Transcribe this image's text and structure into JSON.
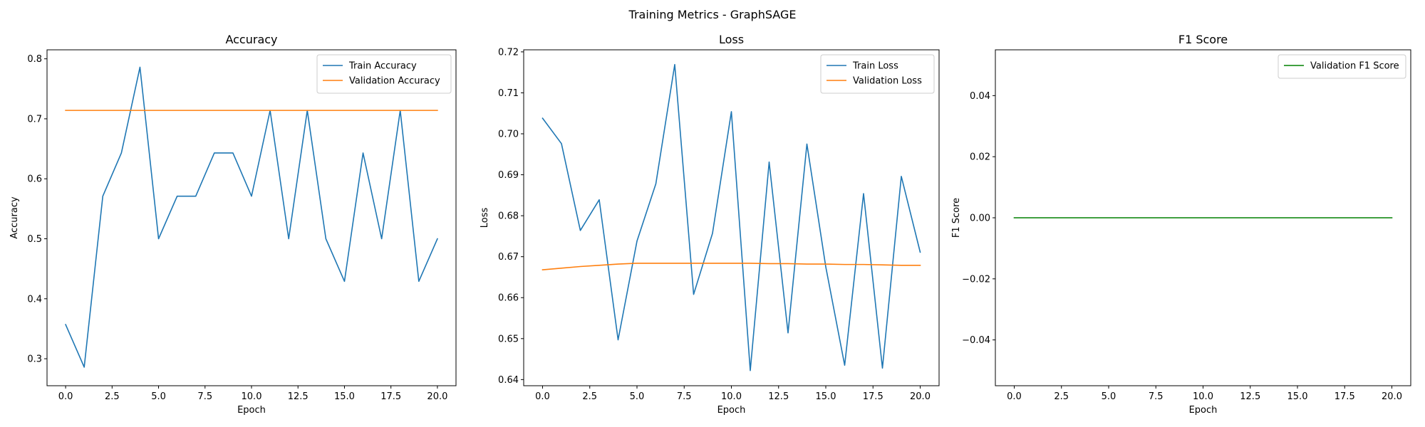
{
  "figure_title": "Training Metrics - GraphSAGE",
  "chart_data": [
    {
      "type": "line",
      "title": "Accuracy",
      "xlabel": "Epoch",
      "ylabel": "Accuracy",
      "xlim": [
        -1.0,
        21.0
      ],
      "ylim": [
        0.255,
        0.815
      ],
      "xticks": [
        0.0,
        2.5,
        5.0,
        7.5,
        10.0,
        12.5,
        15.0,
        17.5,
        20.0
      ],
      "xtick_labels": [
        "0.0",
        "2.5",
        "5.0",
        "7.5",
        "10.0",
        "12.5",
        "15.0",
        "17.5",
        "20.0"
      ],
      "yticks": [
        0.3,
        0.4,
        0.5,
        0.6,
        0.7,
        0.8
      ],
      "ytick_labels": [
        "0.3",
        "0.4",
        "0.5",
        "0.6",
        "0.7",
        "0.8"
      ],
      "legend_position": "upper right",
      "grid": false,
      "series": [
        {
          "name": "Train Accuracy",
          "color": "#1f77b4",
          "x": [
            0,
            1,
            2,
            3,
            4,
            5,
            6,
            7,
            8,
            9,
            10,
            11,
            12,
            13,
            14,
            15,
            16,
            17,
            18,
            19,
            20
          ],
          "y": [
            0.357,
            0.286,
            0.571,
            0.643,
            0.786,
            0.5,
            0.571,
            0.571,
            0.643,
            0.643,
            0.571,
            0.714,
            0.5,
            0.714,
            0.5,
            0.429,
            0.643,
            0.5,
            0.714,
            0.429,
            0.5
          ]
        },
        {
          "name": "Validation Accuracy",
          "color": "#ff7f0e",
          "x": [
            0,
            1,
            2,
            3,
            4,
            5,
            6,
            7,
            8,
            9,
            10,
            11,
            12,
            13,
            14,
            15,
            16,
            17,
            18,
            19,
            20
          ],
          "y": [
            0.714,
            0.714,
            0.714,
            0.714,
            0.714,
            0.714,
            0.714,
            0.714,
            0.714,
            0.714,
            0.714,
            0.714,
            0.714,
            0.714,
            0.714,
            0.714,
            0.714,
            0.714,
            0.714,
            0.714,
            0.714
          ]
        }
      ]
    },
    {
      "type": "line",
      "title": "Loss",
      "xlabel": "Epoch",
      "ylabel": "Loss",
      "xlim": [
        -1.0,
        21.0
      ],
      "ylim": [
        0.6385,
        0.7205
      ],
      "xticks": [
        0.0,
        2.5,
        5.0,
        7.5,
        10.0,
        12.5,
        15.0,
        17.5,
        20.0
      ],
      "xtick_labels": [
        "0.0",
        "2.5",
        "5.0",
        "7.5",
        "10.0",
        "12.5",
        "15.0",
        "17.5",
        "20.0"
      ],
      "yticks": [
        0.64,
        0.65,
        0.66,
        0.67,
        0.68,
        0.69,
        0.7,
        0.71,
        0.72
      ],
      "ytick_labels": [
        "0.64",
        "0.65",
        "0.66",
        "0.67",
        "0.68",
        "0.69",
        "0.70",
        "0.71",
        "0.72"
      ],
      "legend_position": "upper right",
      "grid": false,
      "series": [
        {
          "name": "Train Loss",
          "color": "#1f77b4",
          "x": [
            0,
            1,
            2,
            3,
            4,
            5,
            6,
            7,
            8,
            9,
            10,
            11,
            12,
            13,
            14,
            15,
            16,
            17,
            18,
            19,
            20
          ],
          "y": [
            0.7038,
            0.6976,
            0.6764,
            0.6839,
            0.6497,
            0.6738,
            0.6878,
            0.7169,
            0.6608,
            0.6757,
            0.7054,
            0.6422,
            0.6931,
            0.6514,
            0.6975,
            0.6675,
            0.6435,
            0.6854,
            0.6428,
            0.6896,
            0.6711
          ]
        },
        {
          "name": "Validation Loss",
          "color": "#ff7f0e",
          "x": [
            0,
            1,
            2,
            3,
            4,
            5,
            6,
            7,
            8,
            9,
            10,
            11,
            12,
            13,
            14,
            15,
            16,
            17,
            18,
            19,
            20
          ],
          "y": [
            0.6668,
            0.6672,
            0.6676,
            0.6679,
            0.6682,
            0.6684,
            0.6684,
            0.6684,
            0.6684,
            0.6684,
            0.6684,
            0.6684,
            0.6683,
            0.6683,
            0.6682,
            0.6682,
            0.6681,
            0.6681,
            0.668,
            0.6679,
            0.6679
          ]
        }
      ]
    },
    {
      "type": "line",
      "title": "F1 Score",
      "xlabel": "Epoch",
      "ylabel": "F1 Score",
      "xlim": [
        -1.0,
        21.0
      ],
      "ylim": [
        -0.055,
        0.055
      ],
      "xticks": [
        0.0,
        2.5,
        5.0,
        7.5,
        10.0,
        12.5,
        15.0,
        17.5,
        20.0
      ],
      "xtick_labels": [
        "0.0",
        "2.5",
        "5.0",
        "7.5",
        "10.0",
        "12.5",
        "15.0",
        "17.5",
        "20.0"
      ],
      "yticks": [
        -0.04,
        -0.02,
        0.0,
        0.02,
        0.04
      ],
      "ytick_labels": [
        "−0.04",
        "−0.02",
        "0.00",
        "0.02",
        "0.04"
      ],
      "legend_position": "upper right",
      "grid": false,
      "series": [
        {
          "name": "Validation F1 Score",
          "color": "#008000",
          "x": [
            0,
            1,
            2,
            3,
            4,
            5,
            6,
            7,
            8,
            9,
            10,
            11,
            12,
            13,
            14,
            15,
            16,
            17,
            18,
            19,
            20
          ],
          "y": [
            0,
            0,
            0,
            0,
            0,
            0,
            0,
            0,
            0,
            0,
            0,
            0,
            0,
            0,
            0,
            0,
            0,
            0,
            0,
            0,
            0
          ]
        }
      ]
    }
  ]
}
